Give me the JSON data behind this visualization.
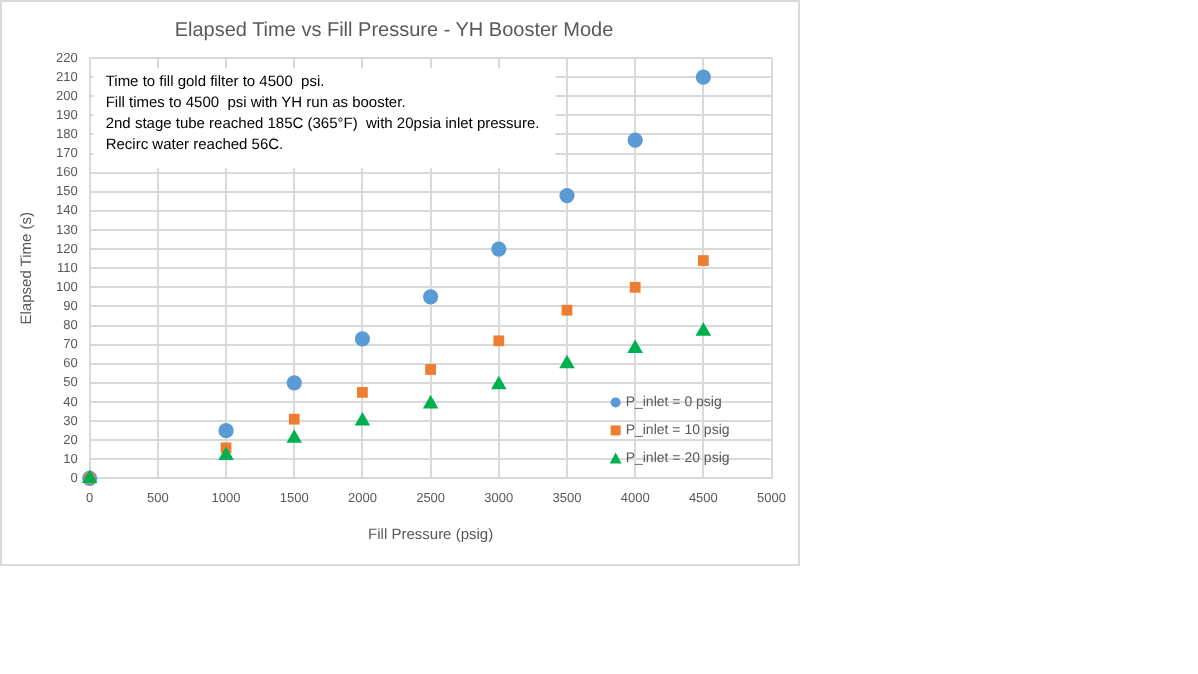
{
  "chart_data": {
    "type": "scatter",
    "title": "Elapsed Time vs Fill Pressure - YH Booster Mode",
    "xlabel": "Fill Pressure (psig)",
    "ylabel": "Elapsed Time (s)",
    "x": [
      0,
      1000,
      1500,
      2000,
      2500,
      3000,
      3500,
      4000,
      4500
    ],
    "series": [
      {
        "name": "P_inlet = 0 psig",
        "color": "#5b9bd5",
        "marker": "circle",
        "values": [
          0,
          25,
          50,
          73,
          95,
          120,
          148,
          177,
          210
        ]
      },
      {
        "name": "P_inlet = 10 psig",
        "color": "#ed7d31",
        "marker": "square",
        "values": [
          0,
          16,
          31,
          45,
          57,
          72,
          88,
          100,
          114
        ]
      },
      {
        "name": "P_inlet = 20 psig",
        "color": "#00b050",
        "marker": "triangle",
        "values": [
          0,
          12,
          21,
          30,
          39,
          49,
          60,
          68,
          77
        ]
      }
    ],
    "xlim": [
      0,
      5000
    ],
    "xticks": [
      0,
      500,
      1000,
      1500,
      2000,
      2500,
      3000,
      3500,
      4000,
      4500,
      5000
    ],
    "ylim": [
      0,
      220
    ],
    "yticks": [
      0,
      10,
      20,
      30,
      40,
      50,
      60,
      70,
      80,
      90,
      100,
      110,
      120,
      130,
      140,
      150,
      160,
      170,
      180,
      190,
      200,
      210,
      220
    ],
    "grid": true,
    "legend": "bottom right",
    "annotations": [
      "Time to fill gold filter to 4500  psi.",
      "Fill times to 4500  psi with YH run as booster.",
      "2nd stage tube reached 185C (365°F)  with 20psia inlet pressure.",
      "Recirc water reached 56C."
    ]
  }
}
